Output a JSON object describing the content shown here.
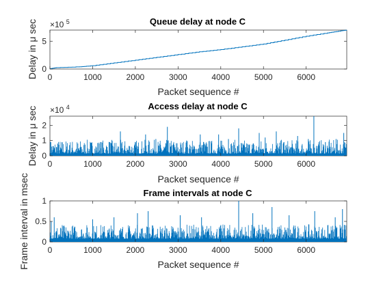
{
  "chart_data": [
    {
      "type": "line",
      "title": "Queue delay at node C",
      "xlabel": "Packet sequence #",
      "ylabel": "Delay in μ sec",
      "xlim": [
        0,
        6950
      ],
      "ylim": [
        0,
        7
      ],
      "y_multiplier_base": "×10",
      "y_multiplier_exp": "5",
      "xticks": [
        0,
        1000,
        2000,
        3000,
        4000,
        5000,
        6000
      ],
      "yticks": [
        0,
        5
      ],
      "color": "#0072BD",
      "series": [
        {
          "x": [
            0,
            150,
            700,
            1000,
            1500,
            2000,
            2500,
            3000,
            3500,
            4000,
            4500,
            5000,
            5500,
            6000,
            6500,
            6800,
            6950
          ],
          "values": [
            0.05,
            0.25,
            0.4,
            0.6,
            1.1,
            1.6,
            2.1,
            2.6,
            3.1,
            3.5,
            4.0,
            4.5,
            5.2,
            5.9,
            6.5,
            6.85,
            7.0
          ]
        }
      ]
    },
    {
      "type": "line",
      "title": "Access delay at node C",
      "xlabel": "Packet sequence #",
      "ylabel": "Delay in μ sec",
      "xlim": [
        0,
        6950
      ],
      "ylim": [
        0,
        2.6
      ],
      "y_multiplier_base": "×10",
      "y_multiplier_exp": "4",
      "xticks": [
        0,
        1000,
        2000,
        3000,
        4000,
        5000,
        6000
      ],
      "yticks": [
        0,
        1,
        2
      ],
      "color": "#0072BD",
      "baseline": 0.15,
      "noise": 0.35,
      "spikes": [
        {
          "x": 20,
          "y": 0.9
        },
        {
          "x": 180,
          "y": 0.8
        },
        {
          "x": 460,
          "y": 0.7
        },
        {
          "x": 720,
          "y": 0.6
        },
        {
          "x": 1150,
          "y": 0.8
        },
        {
          "x": 1400,
          "y": 0.9
        },
        {
          "x": 1650,
          "y": 1.6
        },
        {
          "x": 1870,
          "y": 0.6
        },
        {
          "x": 2240,
          "y": 1.4
        },
        {
          "x": 2480,
          "y": 1.1
        },
        {
          "x": 2750,
          "y": 1.9
        },
        {
          "x": 2890,
          "y": 0.8
        },
        {
          "x": 3200,
          "y": 1.0
        },
        {
          "x": 3520,
          "y": 1.4
        },
        {
          "x": 3600,
          "y": 0.9
        },
        {
          "x": 3950,
          "y": 1.4
        },
        {
          "x": 4180,
          "y": 1.1
        },
        {
          "x": 4420,
          "y": 1.8
        },
        {
          "x": 4900,
          "y": 1.5
        },
        {
          "x": 5040,
          "y": 1.2
        },
        {
          "x": 5300,
          "y": 1.6
        },
        {
          "x": 5480,
          "y": 0.9
        },
        {
          "x": 5800,
          "y": 1.3
        },
        {
          "x": 6050,
          "y": 1.1
        },
        {
          "x": 6180,
          "y": 2.6
        },
        {
          "x": 6450,
          "y": 0.9
        },
        {
          "x": 6700,
          "y": 1.1
        },
        {
          "x": 6880,
          "y": 1.5
        }
      ]
    },
    {
      "type": "line",
      "title": "Frame intervals at node C",
      "xlabel": "Packet sequence #",
      "ylabel": "Frame interval in msec",
      "xlim": [
        0,
        6950
      ],
      "ylim": [
        0,
        1.0
      ],
      "xticks": [
        0,
        1000,
        2000,
        3000,
        4000,
        5000,
        6000
      ],
      "yticks": [
        0,
        0.5,
        1
      ],
      "color": "#0072BD",
      "baseline": 0.08,
      "noise": 0.35,
      "spikes": [
        {
          "x": 30,
          "y": 0.5
        },
        {
          "x": 100,
          "y": 0.6
        },
        {
          "x": 1000,
          "y": 0.55
        },
        {
          "x": 1500,
          "y": 0.6
        },
        {
          "x": 2050,
          "y": 0.7
        },
        {
          "x": 2300,
          "y": 0.75
        },
        {
          "x": 3050,
          "y": 0.65
        },
        {
          "x": 3550,
          "y": 0.6
        },
        {
          "x": 4420,
          "y": 1.0
        },
        {
          "x": 4750,
          "y": 0.7
        },
        {
          "x": 5200,
          "y": 0.85
        },
        {
          "x": 5600,
          "y": 0.65
        },
        {
          "x": 6200,
          "y": 0.75
        },
        {
          "x": 6680,
          "y": 0.6
        },
        {
          "x": 6850,
          "y": 0.8
        }
      ]
    }
  ]
}
